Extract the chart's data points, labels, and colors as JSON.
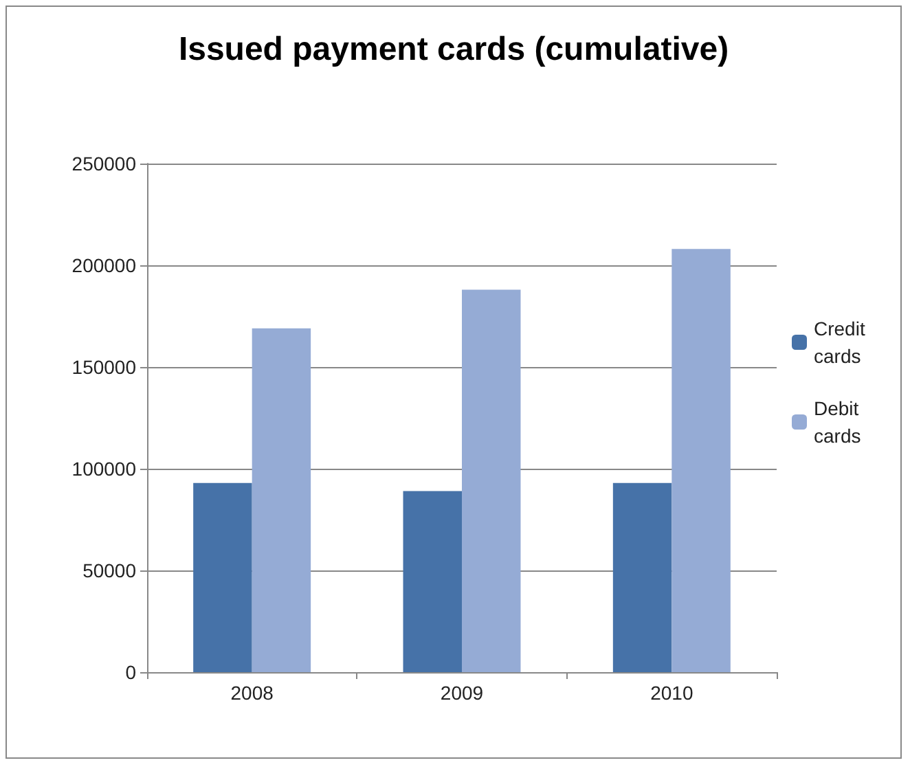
{
  "chart_data": {
    "type": "bar",
    "title": "Issued payment cards (cumulative)",
    "categories": [
      "2008",
      "2009",
      "2010"
    ],
    "series": [
      {
        "name": "Credit cards",
        "color": "#4672a8",
        "values": [
          93000,
          89000,
          93000
        ]
      },
      {
        "name": "Debit cards",
        "color": "#95abd5",
        "values": [
          169000,
          188000,
          208000
        ]
      }
    ],
    "ylim": [
      0,
      250000
    ],
    "yticks": [
      0,
      50000,
      100000,
      150000,
      200000,
      250000
    ],
    "grid": "y",
    "legend": "right"
  }
}
